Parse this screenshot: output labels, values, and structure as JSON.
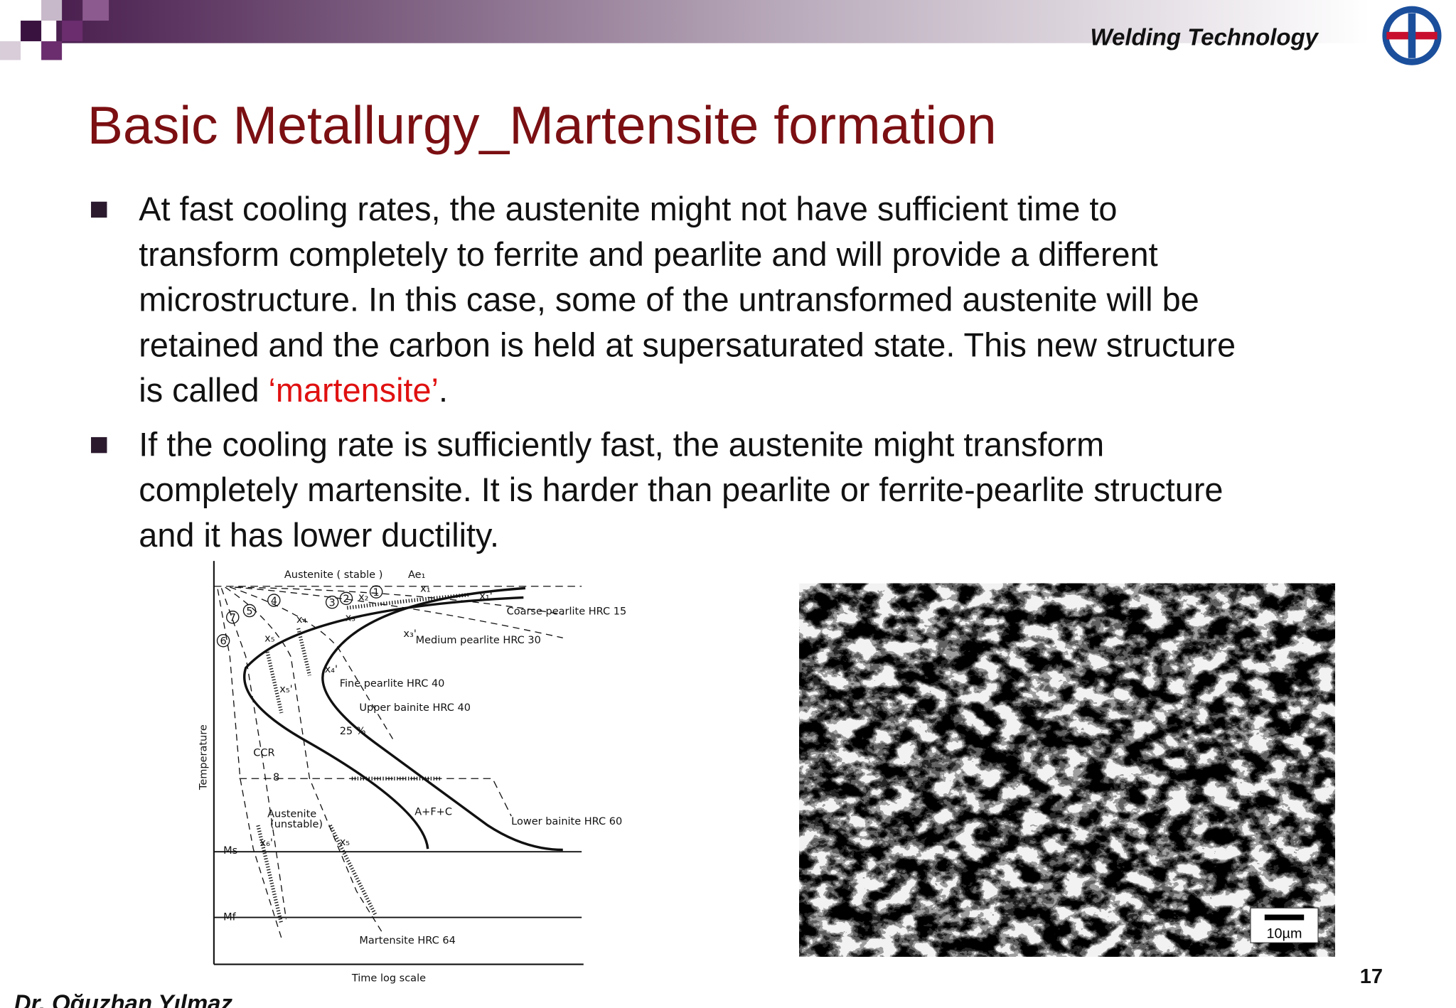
{
  "header": {
    "course": "Welding Technology"
  },
  "title": "Basic Metallurgy_Martensite formation",
  "bullets": [
    {
      "lines": [
        "At fast cooling rates, the austenite might not have sufficient time to",
        "transform completely to ferrite and pearlite and will provide a different",
        "microstructure. In this case, some of the untransformed austenite will be",
        "retained and the carbon is held at supersaturated state. This new structure"
      ],
      "last_line": {
        "start": "is called ",
        "highlight": "‘martensite’",
        "end": "."
      }
    },
    {
      "lines": [
        "If the cooling rate is sufficiently fast, the austenite might transform",
        "completely martensite. It is harder than pearlite or ferrite-pearlite structure",
        "and it has lower ductility."
      ]
    }
  ],
  "diagram": {
    "y_axis_label": "Temperature",
    "x_axis_label": "Time log scale",
    "labels": [
      "Austenite ( stable )",
      "Ae₁",
      "Coarse pearlite HRC 15",
      "Medium pearlite HRC 30",
      "Fine pearlite HRC 40",
      "Upper bainite HRC 40",
      "25 %",
      "CCR",
      "8",
      "A+F+C",
      "Lower bainite HRC 60",
      "Ms",
      "Mf",
      "Martensite HRC 64"
    ],
    "austenite_unstable": [
      "Austenite",
      "(unstable)"
    ],
    "curve_numbers": [
      "1",
      "2",
      "3",
      "4",
      "5",
      "6",
      "7"
    ],
    "x_marks": [
      "x₁",
      "x₂",
      "x₁'",
      "x₃",
      "x₃'",
      "x₄",
      "x₄'",
      "x₅",
      "x₅'",
      "x₆'",
      "x₅"
    ]
  },
  "micrograph": {
    "scale_bar": "10µm"
  },
  "page_number": "17",
  "author": "Dr. Oğuzhan Yılmaz"
}
